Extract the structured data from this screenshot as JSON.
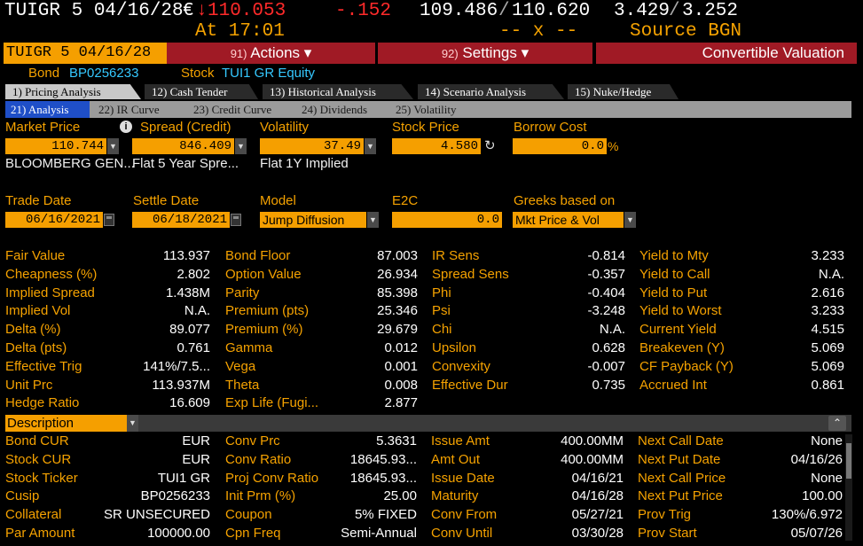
{
  "quote": {
    "ticker": "TUIGR 5 04/16/28",
    "currency_symbol": "€",
    "down_arrow": "↓",
    "last_price": "110.053",
    "change": "-.152",
    "bid": "109.486",
    "ask": "110.620",
    "separator": "/",
    "yield_bid": "3.429",
    "yield_ask": "3.252",
    "time_label": "At 17:01",
    "size_placeholder": "-- x --",
    "source_label": "Source BGN"
  },
  "command_bar": {
    "security": "TUIGR 5 04/16/28",
    "actions_num": "91)",
    "actions_label": "Actions ▾",
    "settings_num": "92)",
    "settings_label": "Settings ▾",
    "title": "Convertible Valuation"
  },
  "ids": {
    "bond_label": "Bond",
    "bond_id": "BP0256233",
    "stock_label": "Stock",
    "stock_id": "TUI1 GR Equity"
  },
  "tabs": [
    {
      "num": "1)",
      "label": "Pricing Analysis"
    },
    {
      "num": "12)",
      "label": "Cash Tender"
    },
    {
      "num": "13)",
      "label": "Historical Analysis"
    },
    {
      "num": "14)",
      "label": "Scenario Analysis"
    },
    {
      "num": "15)",
      "label": "Nuke/Hedge"
    }
  ],
  "subtabs": [
    {
      "num": "21)",
      "label": "Analysis"
    },
    {
      "num": "22)",
      "label": "IR Curve"
    },
    {
      "num": "23)",
      "label": "Credit Curve"
    },
    {
      "num": "24)",
      "label": "Dividends"
    },
    {
      "num": "25)",
      "label": "Volatility"
    }
  ],
  "inputs_row1": {
    "market_price": {
      "label": "Market Price",
      "value": "110.744",
      "sub": "BLOOMBERG GEN..."
    },
    "spread": {
      "label": "Spread (Credit)",
      "value": "846.409",
      "sub": "Flat 5 Year Spre..."
    },
    "volatility": {
      "label": "Volatility",
      "value": "37.49",
      "sub": "Flat 1Y Implied"
    },
    "stock_price": {
      "label": "Stock Price",
      "value": "4.580"
    },
    "borrow_cost": {
      "label": "Borrow Cost",
      "value": "0.0",
      "unit": "%"
    }
  },
  "inputs_row2": {
    "trade_date": {
      "label": "Trade Date",
      "value": "06/16/2021"
    },
    "settle_date": {
      "label": "Settle Date",
      "value": "06/18/2021"
    },
    "model": {
      "label": "Model",
      "value": "Jump Diffusion"
    },
    "e2c": {
      "label": "E2C",
      "value": "0.0"
    },
    "greeks": {
      "label": "Greeks based on",
      "value": "Mkt Price & Vol"
    }
  },
  "stats": {
    "col1": [
      {
        "label": "Fair Value",
        "value": "113.937"
      },
      {
        "label": "Cheapness (%)",
        "value": "2.802"
      },
      {
        "label": "Implied Spread",
        "value": "1.438M"
      },
      {
        "label": "Implied Vol",
        "value": "N.A."
      },
      {
        "label": "Delta (%)",
        "value": "89.077"
      },
      {
        "label": "Delta (pts)",
        "value": "0.761"
      },
      {
        "label": "Effective Trig",
        "value": "141%/7.5..."
      },
      {
        "label": "Unit Prc",
        "value": "113.937M"
      },
      {
        "label": "Hedge Ratio",
        "value": "16.609"
      }
    ],
    "col2": [
      {
        "label": "Bond Floor",
        "value": "87.003"
      },
      {
        "label": "Option Value",
        "value": "26.934"
      },
      {
        "label": "Parity",
        "value": "85.398"
      },
      {
        "label": "Premium (pts)",
        "value": "25.346"
      },
      {
        "label": "Premium (%)",
        "value": "29.679"
      },
      {
        "label": "Gamma",
        "value": "0.012"
      },
      {
        "label": "Vega",
        "value": "0.001"
      },
      {
        "label": "Theta",
        "value": "0.008"
      },
      {
        "label": "Exp Life (Fugi...",
        "value": "2.877"
      }
    ],
    "col3": [
      {
        "label": "IR Sens",
        "value": "-0.814"
      },
      {
        "label": "Spread Sens",
        "value": "-0.357"
      },
      {
        "label": "Phi",
        "value": "-0.404"
      },
      {
        "label": "Psi",
        "value": "-3.248"
      },
      {
        "label": "Chi",
        "value": "N.A."
      },
      {
        "label": "Upsilon",
        "value": "0.628"
      },
      {
        "label": "Convexity",
        "value": "-0.007"
      },
      {
        "label": "Effective Dur",
        "value": "0.735"
      }
    ],
    "col4": [
      {
        "label": "Yield to Mty",
        "value": "3.233"
      },
      {
        "label": "Yield to Call",
        "value": "N.A."
      },
      {
        "label": "Yield to Put",
        "value": "2.616"
      },
      {
        "label": "Yield to Worst",
        "value": "3.233"
      },
      {
        "label": "Current Yield",
        "value": "4.515"
      },
      {
        "label": "Breakeven (Y)",
        "value": "5.069"
      },
      {
        "label": "CF Payback (Y)",
        "value": "5.069"
      },
      {
        "label": "Accrued Int",
        "value": "0.861"
      }
    ]
  },
  "description": {
    "dropdown_value": "Description",
    "collapse_glyph": "⌃",
    "col1": [
      {
        "label": "Bond CUR",
        "value": "EUR"
      },
      {
        "label": "Stock CUR",
        "value": "EUR"
      },
      {
        "label": "Stock Ticker",
        "value": "TUI1 GR"
      },
      {
        "label": "Cusip",
        "value": "BP0256233"
      },
      {
        "label": "Collateral",
        "value": "SR UNSECURED"
      },
      {
        "label": "Par Amount",
        "value": "100000.00"
      }
    ],
    "col2": [
      {
        "label": "Conv Prc",
        "value": "5.3631"
      },
      {
        "label": "Conv Ratio",
        "value": "18645.93..."
      },
      {
        "label": "Proj Conv Ratio",
        "value": "18645.93..."
      },
      {
        "label": "Init Prm (%)",
        "value": "25.00"
      },
      {
        "label": "Coupon",
        "value": "5% FIXED"
      },
      {
        "label": "Cpn Freq",
        "value": "Semi-Annual"
      }
    ],
    "col3": [
      {
        "label": "Issue Amt",
        "value": "400.00MM"
      },
      {
        "label": "Amt Out",
        "value": "400.00MM"
      },
      {
        "label": "Issue Date",
        "value": "04/16/21"
      },
      {
        "label": "Maturity",
        "value": "04/16/28"
      },
      {
        "label": "Conv From",
        "value": "05/27/21"
      },
      {
        "label": "Conv Until",
        "value": "03/30/28"
      }
    ],
    "col4": [
      {
        "label": "Next Call Date",
        "value": "None"
      },
      {
        "label": "Next Put Date",
        "value": "04/16/26"
      },
      {
        "label": "Next Call Price",
        "value": "None"
      },
      {
        "label": "Next Put Price",
        "value": "100.00"
      },
      {
        "label": "Prov Trig",
        "value": "130%/6.972"
      },
      {
        "label": "Prov Start",
        "value": "05/07/26"
      }
    ]
  },
  "colors": {
    "orange": "#f59f00",
    "red": "#a01a25",
    "cyan": "#35c8ff",
    "blue_tab": "#1f4fc8"
  }
}
